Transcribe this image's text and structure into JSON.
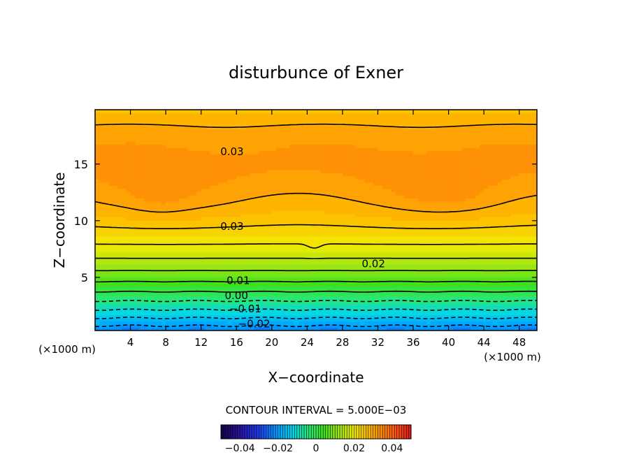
{
  "chart_data": {
    "type": "contour",
    "title": "disturbunce of Exner",
    "xlabel": "X−coordinate",
    "ylabel": "Z−coordinate",
    "x_unit_left": "(×1000 m)",
    "x_unit_right": "(×1000 m)",
    "xlim": [
      0,
      50
    ],
    "ylim": [
      0.3,
      19.8
    ],
    "x_ticks": [
      4,
      8,
      12,
      16,
      20,
      24,
      28,
      32,
      36,
      40,
      44,
      48
    ],
    "y_ticks": [
      5,
      10,
      15
    ],
    "contour_interval_text": "CONTOUR INTERVAL = 5.000E−03",
    "contour_interval": 0.005,
    "contour_levels": [
      -0.02,
      -0.015,
      -0.01,
      -0.005,
      0.0,
      0.005,
      0.01,
      0.015,
      0.02,
      0.025,
      0.03
    ],
    "contour_labels": [
      {
        "text": "0.03",
        "x": 15.5,
        "z": 16.1
      },
      {
        "text": "0.03",
        "x": 15.5,
        "z": 9.5
      },
      {
        "text": "0.02",
        "x": 31.5,
        "z": 6.2
      },
      {
        "text": "0.01",
        "x": 16.2,
        "z": 4.7
      },
      {
        "text": "0.00",
        "x": 16.0,
        "z": 3.4
      },
      {
        "text": "−0.01",
        "x": 17.0,
        "z": 2.2
      },
      {
        "text": "−0.02",
        "x": 18.0,
        "z": 0.9
      }
    ],
    "colorbar": {
      "range": [
        -0.05,
        0.05
      ],
      "ticks": [
        "−0.04",
        "−0.02",
        "0",
        "0.02",
        "0.04"
      ],
      "tick_values": [
        -0.04,
        -0.02,
        0,
        0.02,
        0.04
      ]
    }
  }
}
